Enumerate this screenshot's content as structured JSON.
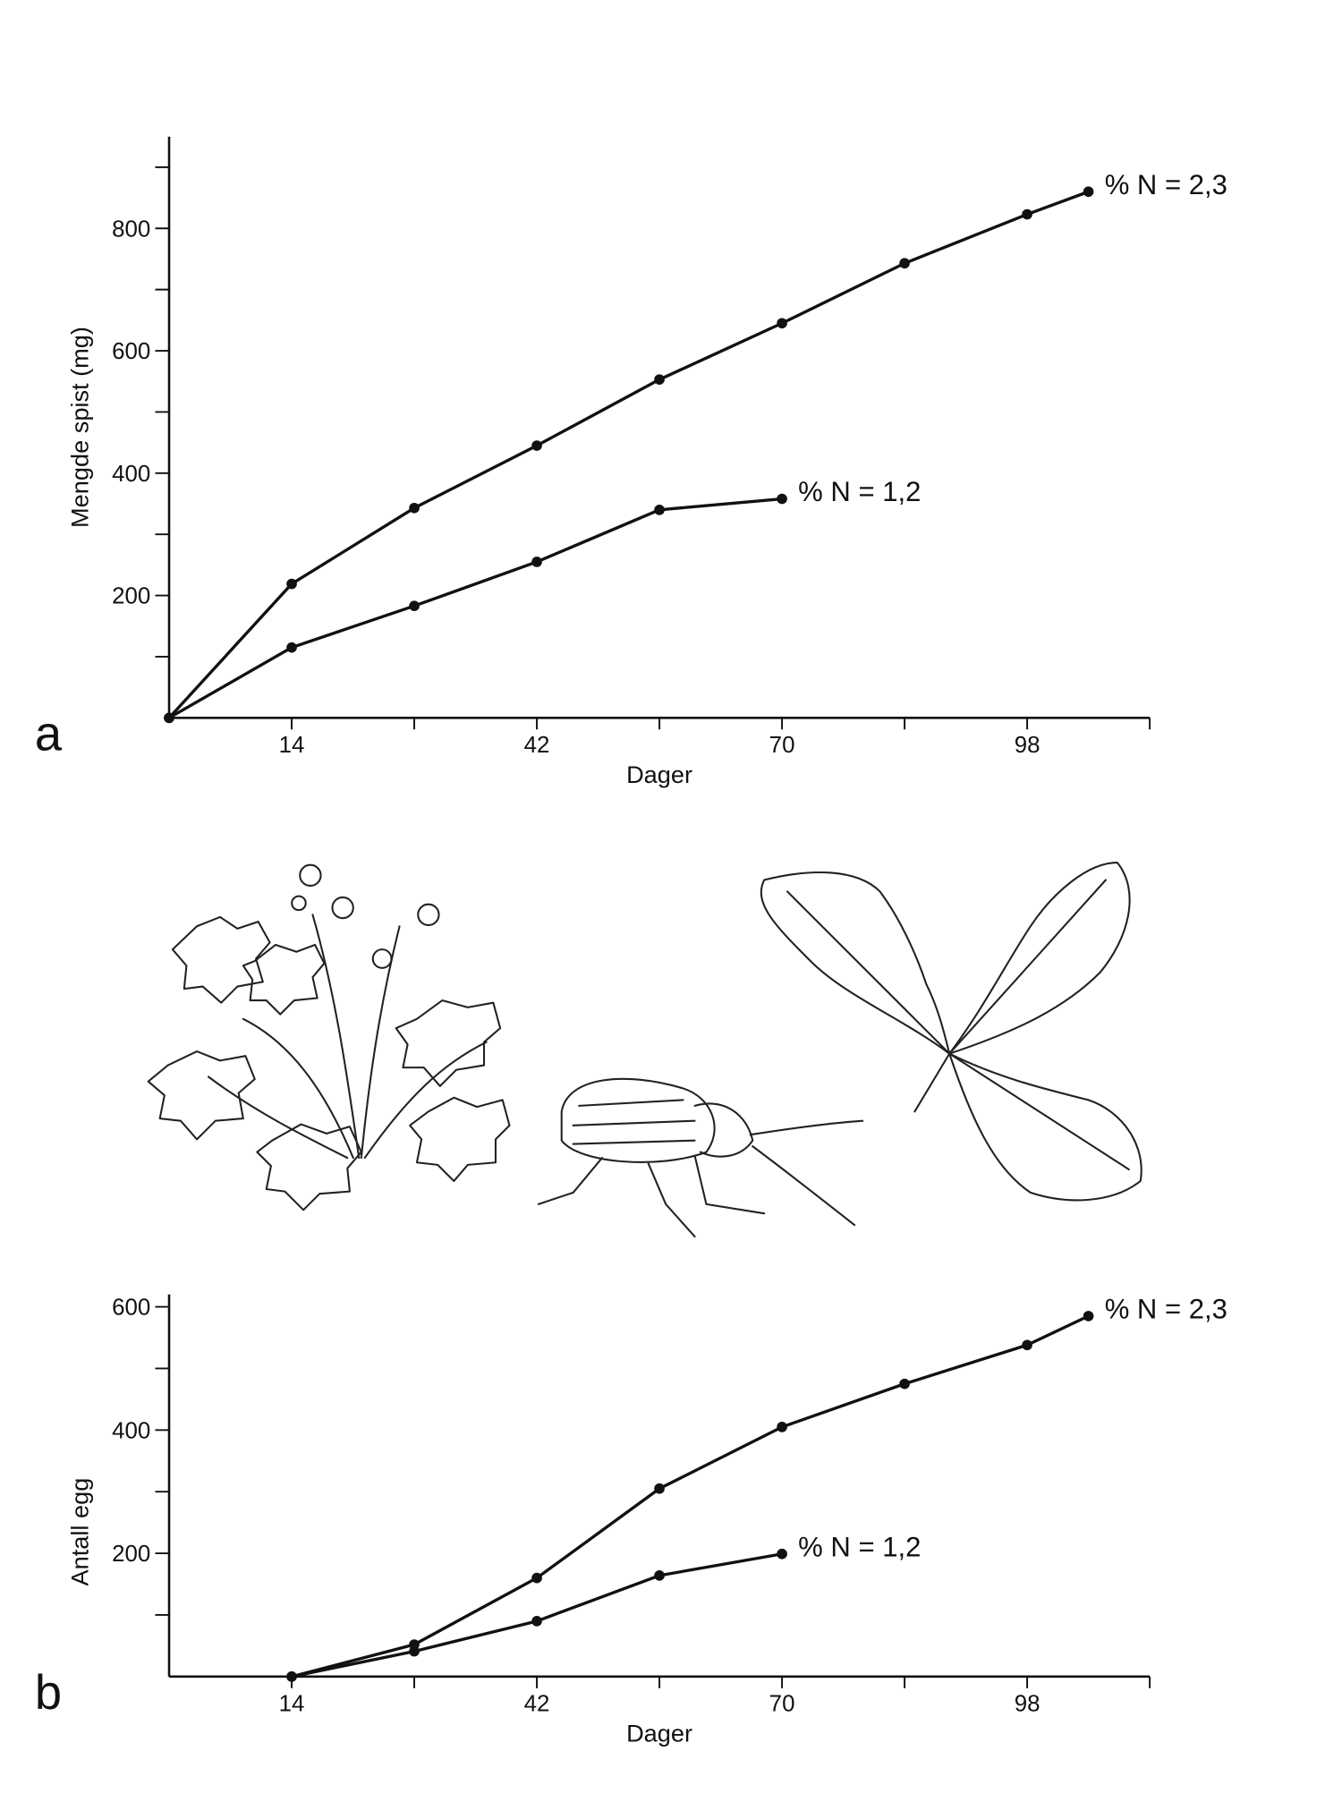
{
  "chart_data": [
    {
      "type": "line",
      "panel": "a",
      "ylabel": "Mengde spist (mg)",
      "xlabel": "Dager",
      "xlim": [
        0,
        112
      ],
      "xticks": [
        14,
        42,
        70,
        98
      ],
      "xminorticks": [
        28,
        56,
        84,
        112
      ],
      "ylim": [
        0,
        950
      ],
      "yticks": [
        200,
        400,
        600,
        800
      ],
      "yminorticks": [
        100,
        300,
        500,
        700,
        900
      ],
      "series": [
        {
          "name": "% N = 2,3",
          "color": "#111111",
          "x": [
            0,
            14,
            28,
            42,
            56,
            70,
            84,
            98,
            105
          ],
          "values": [
            0,
            219,
            343,
            445,
            553,
            645,
            743,
            823,
            860
          ]
        },
        {
          "name": "% N = 1,2",
          "color": "#111111",
          "x": [
            0,
            14,
            28,
            42,
            56,
            70
          ],
          "values": [
            0,
            115,
            183,
            255,
            340,
            358
          ]
        }
      ]
    },
    {
      "type": "line",
      "panel": "b",
      "ylabel": "Antall egg",
      "xlabel": "Dager",
      "xlim": [
        0,
        112
      ],
      "xticks": [
        14,
        42,
        70,
        98
      ],
      "xminorticks": [
        28,
        56,
        84,
        112
      ],
      "ylim": [
        0,
        620
      ],
      "yticks": [
        200,
        400,
        600
      ],
      "yminorticks": [
        100,
        300,
        500
      ],
      "series": [
        {
          "name": "% N = 2,3",
          "color": "#111111",
          "x": [
            14,
            28,
            42,
            56,
            70,
            84,
            98,
            105
          ],
          "values": [
            0,
            52,
            160,
            305,
            405,
            475,
            538,
            585
          ]
        },
        {
          "name": "% N = 1,2",
          "color": "#111111",
          "x": [
            14,
            28,
            42,
            56,
            70
          ],
          "values": [
            0,
            41,
            90,
            164,
            199
          ]
        }
      ]
    }
  ]
}
